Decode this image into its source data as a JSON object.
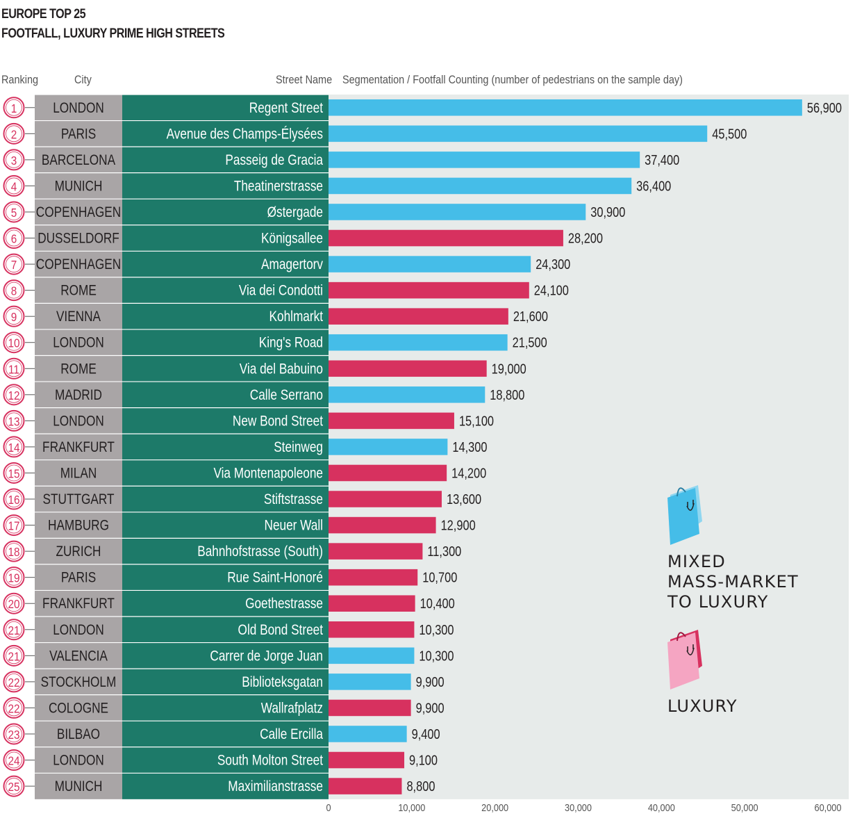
{
  "title_line1": "EUROPE TOP 25",
  "title_line2": "FOOTFALL, LUXURY PRIME HIGH STREETS",
  "headers": {
    "ranking": "Ranking",
    "city": "City",
    "street": "Street Name",
    "segmentation": "Segmentation /  Footfall Counting (number of pedestrians on the sample day)"
  },
  "legend": {
    "mixed_line1": "MIXED",
    "mixed_line2": "MASS-MARKET",
    "mixed_line3": "TO LUXURY",
    "luxury": "LUXURY"
  },
  "colors": {
    "mixed": "#45bde8",
    "luxury": "#d7315f",
    "city_bg": "#a9a5a6",
    "street_bg": "#1d7a69",
    "plot_bg": "#e7ebea",
    "rank_circle": "#d7315f"
  },
  "chart_data": {
    "type": "bar",
    "orientation": "horizontal",
    "title": "EUROPE TOP 25 FOOTFALL, LUXURY PRIME HIGH STREETS",
    "xlabel": "Footfall Counting (number of pedestrians on the sample day)",
    "xlim": [
      0,
      60000
    ],
    "xticks": [
      0,
      10000,
      20000,
      30000,
      40000,
      50000,
      60000
    ],
    "xtick_labels": [
      "0",
      "10,000",
      "20,000",
      "30,000",
      "40,000",
      "50,000",
      "60,000"
    ],
    "rows": [
      {
        "rank": "1",
        "city": "LONDON",
        "street": "Regent Street",
        "value": 56900,
        "label": "56,900",
        "segment": "mixed"
      },
      {
        "rank": "2",
        "city": "PARIS",
        "street": "Avenue des Champs-Élysées",
        "value": 45500,
        "label": "45,500",
        "segment": "mixed"
      },
      {
        "rank": "3",
        "city": "BARCELONA",
        "street": "Passeig de Gracia",
        "value": 37400,
        "label": "37,400",
        "segment": "mixed"
      },
      {
        "rank": "4",
        "city": "MUNICH",
        "street": "Theatinerstrasse",
        "value": 36400,
        "label": "36,400",
        "segment": "mixed"
      },
      {
        "rank": "5",
        "city": "COPENHAGEN",
        "street": "Østergade",
        "value": 30900,
        "label": "30,900",
        "segment": "mixed"
      },
      {
        "rank": "6",
        "city": "DUSSELDORF",
        "street": "Königsallee",
        "value": 28200,
        "label": "28,200",
        "segment": "luxury"
      },
      {
        "rank": "7",
        "city": "COPENHAGEN",
        "street": "Amagertorv",
        "value": 24300,
        "label": "24,300",
        "segment": "mixed"
      },
      {
        "rank": "8",
        "city": "ROME",
        "street": "Via dei Condotti",
        "value": 24100,
        "label": "24,100",
        "segment": "luxury"
      },
      {
        "rank": "9",
        "city": "VIENNA",
        "street": "Kohlmarkt",
        "value": 21600,
        "label": "21,600",
        "segment": "luxury"
      },
      {
        "rank": "10",
        "city": "LONDON",
        "street": "King's Road",
        "value": 21500,
        "label": "21,500",
        "segment": "mixed"
      },
      {
        "rank": "11",
        "city": "ROME",
        "street": "Via del Babuino",
        "value": 19000,
        "label": "19,000",
        "segment": "luxury"
      },
      {
        "rank": "12",
        "city": "MADRID",
        "street": "Calle Serrano",
        "value": 18800,
        "label": "18,800",
        "segment": "mixed"
      },
      {
        "rank": "13",
        "city": "LONDON",
        "street": "New Bond Street",
        "value": 15100,
        "label": "15,100",
        "segment": "luxury"
      },
      {
        "rank": "14",
        "city": "FRANKFURT",
        "street": "Steinweg",
        "value": 14300,
        "label": "14,300",
        "segment": "mixed"
      },
      {
        "rank": "15",
        "city": "MILAN",
        "street": "Via Montenapoleone",
        "value": 14200,
        "label": "14,200",
        "segment": "luxury"
      },
      {
        "rank": "16",
        "city": "STUTTGART",
        "street": "Stiftstrasse",
        "value": 13600,
        "label": "13,600",
        "segment": "luxury"
      },
      {
        "rank": "17",
        "city": "HAMBURG",
        "street": "Neuer Wall",
        "value": 12900,
        "label": "12,900",
        "segment": "luxury"
      },
      {
        "rank": "18",
        "city": "ZURICH",
        "street": "Bahnhofstrasse (South)",
        "value": 11300,
        "label": "11,300",
        "segment": "luxury"
      },
      {
        "rank": "19",
        "city": "PARIS",
        "street": "Rue Saint-Honoré",
        "value": 10700,
        "label": "10,700",
        "segment": "luxury"
      },
      {
        "rank": "20",
        "city": "FRANKFURT",
        "street": "Goethestrasse",
        "value": 10400,
        "label": "10,400",
        "segment": "luxury"
      },
      {
        "rank": "21",
        "city": "LONDON",
        "street": "Old Bond Street",
        "value": 10300,
        "label": "10,300",
        "segment": "luxury"
      },
      {
        "rank": "21",
        "city": "VALENCIA",
        "street": "Carrer de Jorge Juan",
        "value": 10300,
        "label": "10,300",
        "segment": "mixed"
      },
      {
        "rank": "22",
        "city": "STOCKHOLM",
        "street": "Biblioteksgatan",
        "value": 9900,
        "label": "9,900",
        "segment": "mixed"
      },
      {
        "rank": "22",
        "city": "COLOGNE",
        "street": "Wallrafplatz",
        "value": 9900,
        "label": "9,900",
        "segment": "luxury"
      },
      {
        "rank": "23",
        "city": "BILBAO",
        "street": "Calle Ercilla",
        "value": 9400,
        "label": "9,400",
        "segment": "mixed"
      },
      {
        "rank": "24",
        "city": "LONDON",
        "street": "South Molton Street",
        "value": 9100,
        "label": "9,100",
        "segment": "luxury"
      },
      {
        "rank": "25",
        "city": "MUNICH",
        "street": "Maximilianstrasse",
        "value": 8800,
        "label": "8,800",
        "segment": "luxury"
      }
    ]
  }
}
